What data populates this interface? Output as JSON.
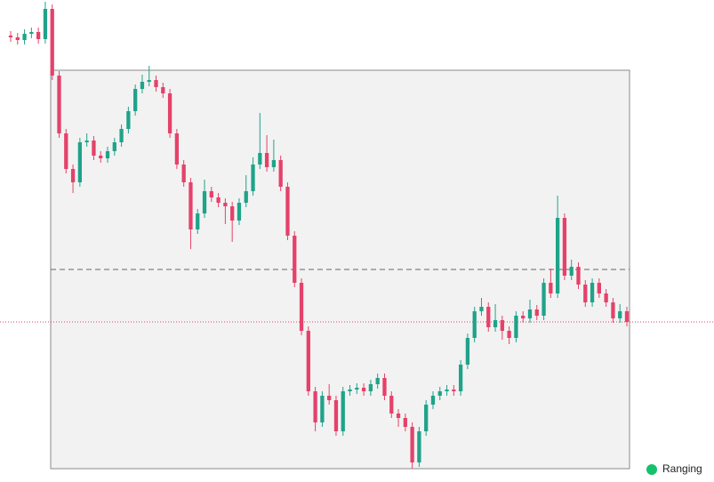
{
  "chart_data": {
    "type": "candlestick",
    "ylim": [
      0,
      542
    ],
    "up_color": "#1fa38a",
    "down_color": "#e5416a",
    "range_high": 463,
    "range_low": 15,
    "range_mid": 239,
    "last_price": 180,
    "status": "Ranging",
    "status_color": "#13c26b",
    "open": [
      502,
      500,
      497,
      504,
      506,
      498,
      532,
      457,
      392,
      352,
      337,
      382,
      384,
      367,
      364,
      372,
      382,
      397,
      417,
      442,
      450,
      452,
      444,
      437,
      392,
      357,
      337,
      284,
      302,
      327,
      320,
      314,
      310,
      294,
      314,
      327,
      357,
      370,
      354,
      362,
      332,
      277,
      224,
      170,
      102,
      67,
      97,
      92,
      57,
      102,
      104,
      106,
      102,
      110,
      117,
      97,
      77,
      72,
      62,
      22,
      57,
      87,
      97,
      102,
      104,
      102,
      132,
      162,
      192,
      197,
      174,
      182,
      170,
      162,
      187,
      184,
      194,
      187,
      224,
      212,
      297,
      232,
      242,
      222,
      202,
      224,
      212,
      202,
      184,
      192
    ],
    "high": [
      507,
      505,
      509,
      511,
      511,
      540,
      537,
      462,
      397,
      357,
      387,
      392,
      389,
      372,
      377,
      387,
      402,
      422,
      447,
      458,
      468,
      457,
      449,
      442,
      397,
      362,
      342,
      307,
      340,
      332,
      325,
      319,
      315,
      319,
      345,
      365,
      415,
      390,
      385,
      367,
      337,
      282,
      229,
      175,
      107,
      102,
      110,
      97,
      107,
      109,
      111,
      111,
      115,
      122,
      122,
      102,
      82,
      77,
      67,
      62,
      92,
      102,
      107,
      109,
      109,
      137,
      167,
      197,
      207,
      202,
      200,
      187,
      175,
      192,
      192,
      205,
      199,
      229,
      240,
      322,
      302,
      250,
      247,
      227,
      229,
      229,
      217,
      207,
      200,
      197
    ],
    "low": [
      495,
      492,
      492,
      499,
      493,
      493,
      452,
      387,
      347,
      325,
      332,
      377,
      362,
      359,
      359,
      367,
      377,
      392,
      412,
      437,
      445,
      439,
      432,
      387,
      352,
      332,
      262,
      279,
      297,
      315,
      309,
      290,
      270,
      289,
      309,
      322,
      352,
      349,
      349,
      327,
      272,
      219,
      165,
      97,
      57,
      62,
      87,
      52,
      52,
      97,
      99,
      97,
      97,
      105,
      92,
      72,
      62,
      57,
      15,
      17,
      52,
      82,
      92,
      97,
      97,
      97,
      127,
      157,
      187,
      169,
      169,
      160,
      155,
      157,
      179,
      179,
      182,
      182,
      207,
      207,
      227,
      227,
      217,
      197,
      197,
      207,
      197,
      179,
      179,
      175
    ],
    "close": [
      500,
      497,
      504,
      506,
      498,
      532,
      457,
      392,
      352,
      337,
      382,
      384,
      367,
      364,
      372,
      382,
      397,
      417,
      442,
      450,
      452,
      444,
      437,
      392,
      357,
      337,
      284,
      302,
      327,
      320,
      314,
      310,
      294,
      314,
      327,
      357,
      370,
      354,
      362,
      332,
      277,
      224,
      170,
      102,
      67,
      97,
      92,
      57,
      102,
      104,
      106,
      102,
      110,
      117,
      97,
      77,
      72,
      62,
      22,
      57,
      87,
      97,
      102,
      104,
      102,
      132,
      162,
      192,
      197,
      174,
      182,
      170,
      162,
      187,
      184,
      194,
      187,
      224,
      212,
      297,
      232,
      242,
      222,
      202,
      224,
      212,
      202,
      184,
      192,
      180
    ]
  }
}
